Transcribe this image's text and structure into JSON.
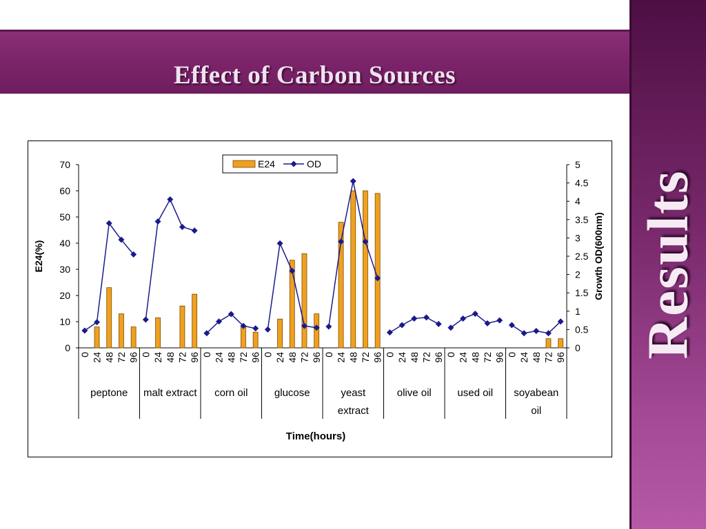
{
  "slide": {
    "title": "Effect of Carbon Sources",
    "side_label": "Results"
  },
  "colors": {
    "title_band": "#7a2368",
    "bar_fill": "#f0a020",
    "bar_stroke": "#7a4a00",
    "line": "#1a1a8c"
  },
  "chart_data": {
    "type": "bar+line",
    "xlabel": "Time(hours)",
    "ylabel_left": "E24(%)",
    "ylabel_right": "Growth OD(600nm)",
    "ylim_left": [
      0,
      70
    ],
    "yticks_left": [
      0,
      10,
      20,
      30,
      40,
      50,
      60,
      70
    ],
    "ylim_right": [
      0,
      5
    ],
    "yticks_right": [
      "0",
      "0.5",
      "1",
      "1.5",
      "2",
      "2.5",
      "3",
      "3.5",
      "4",
      "4.5",
      "5"
    ],
    "legend_position": "top-center",
    "time_ticks": [
      "0",
      "24",
      "48",
      "72",
      "96"
    ],
    "groups": [
      {
        "label": [
          "peptone"
        ],
        "e24": [
          0,
          8,
          23,
          13,
          8
        ],
        "od": [
          0.47,
          0.7,
          3.4,
          2.95,
          2.55
        ]
      },
      {
        "label": [
          "malt extract"
        ],
        "e24": [
          0,
          11.5,
          0,
          16,
          20.5
        ],
        "od": [
          0.77,
          3.45,
          4.05,
          3.3,
          3.2
        ]
      },
      {
        "label": [
          "corn oil"
        ],
        "e24": [
          0,
          0,
          0,
          8,
          6
        ],
        "od": [
          0.4,
          0.72,
          0.92,
          0.6,
          0.53
        ]
      },
      {
        "label": [
          "glucose"
        ],
        "e24": [
          0,
          11,
          33.5,
          36,
          13
        ],
        "od": [
          0.5,
          2.85,
          2.1,
          0.6,
          0.55
        ]
      },
      {
        "label": [
          "yeast",
          "extract"
        ],
        "e24": [
          0,
          48,
          60,
          60,
          59
        ],
        "od": [
          0.58,
          2.9,
          4.55,
          2.9,
          1.9
        ]
      },
      {
        "label": [
          "olive oil"
        ],
        "e24": [
          0,
          0,
          0,
          0,
          0
        ],
        "od": [
          0.42,
          0.62,
          0.8,
          0.83,
          0.65
        ]
      },
      {
        "label": [
          "used oil"
        ],
        "e24": [
          0,
          0,
          0,
          0,
          0
        ],
        "od": [
          0.55,
          0.8,
          0.93,
          0.67,
          0.75
        ]
      },
      {
        "label": [
          "soyabean",
          "oil"
        ],
        "e24": [
          0,
          0,
          0,
          3.5,
          3.5
        ],
        "od": [
          0.62,
          0.4,
          0.46,
          0.4,
          0.72
        ]
      }
    ],
    "series": [
      {
        "name": "E24",
        "kind": "bar"
      },
      {
        "name": "OD",
        "kind": "line"
      }
    ]
  }
}
